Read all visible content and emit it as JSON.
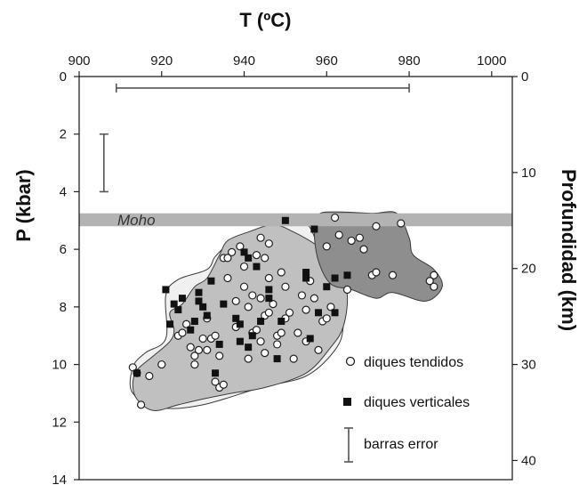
{
  "chart_data": {
    "type": "scatter",
    "title": "",
    "x_title": "T (ºC)",
    "y_title": "P (kbar)",
    "y2_title": "Profundidad (km)",
    "xlim": [
      900,
      1005
    ],
    "x_ticks": [
      900,
      920,
      940,
      960,
      980,
      1000
    ],
    "ylim": [
      0,
      14
    ],
    "y_ticks": [
      0,
      2,
      4,
      6,
      8,
      10,
      12,
      14
    ],
    "y2_ticks": [
      0,
      10,
      20,
      30,
      40
    ],
    "grid": false,
    "legend_position": "bottom-right",
    "moho": {
      "label": "Moho",
      "p_min": 4.75,
      "p_max": 5.2,
      "color": "#b3b3b3"
    },
    "error_bars": {
      "temperature": {
        "min": 909,
        "max": 980,
        "p": 0.4
      },
      "pressure": {
        "t": 906,
        "p_min": 2,
        "p_max": 4
      }
    },
    "fields": [
      {
        "name": "outer",
        "fill": "#f0f0f0",
        "points": [
          [
            913,
            10.1
          ],
          [
            916,
            9.6
          ],
          [
            921,
            9.1
          ],
          [
            921,
            7.6
          ],
          [
            924,
            7.05
          ],
          [
            931,
            6.7
          ],
          [
            933,
            6.25
          ],
          [
            937,
            5.75
          ],
          [
            944,
            5.3
          ],
          [
            949,
            4.9
          ],
          [
            955,
            5.1
          ],
          [
            958,
            5.9
          ],
          [
            963,
            7.6
          ],
          [
            964,
            8.7
          ],
          [
            962,
            9.5
          ],
          [
            955,
            10.4
          ],
          [
            944,
            10.8
          ],
          [
            930,
            11.4
          ],
          [
            920,
            11.5
          ],
          [
            913,
            11.0
          ]
        ]
      },
      {
        "name": "middle",
        "fill": "#c0c0c0",
        "points": [
          [
            914,
            10.2
          ],
          [
            918,
            9.7
          ],
          [
            922,
            9.2
          ],
          [
            923,
            8.8
          ],
          [
            922,
            8.2
          ],
          [
            925,
            7.9
          ],
          [
            928,
            7.3
          ],
          [
            931,
            7.0
          ],
          [
            934,
            6.2
          ],
          [
            936,
            5.7
          ],
          [
            941,
            5.4
          ],
          [
            947,
            5.15
          ],
          [
            952,
            5.4
          ],
          [
            958,
            5.9
          ],
          [
            963,
            6.5
          ],
          [
            965,
            7.6
          ],
          [
            964,
            8.7
          ],
          [
            961,
            9.4
          ],
          [
            955,
            10.3
          ],
          [
            945,
            10.8
          ],
          [
            937,
            11.0
          ],
          [
            930,
            11.2
          ],
          [
            924,
            11.4
          ],
          [
            918,
            11.6
          ],
          [
            914,
            11.2
          ],
          [
            913,
            10.7
          ]
        ]
      },
      {
        "name": "high-temperature",
        "fill": "#8e8e8e",
        "points": [
          [
            958,
            4.8
          ],
          [
            962,
            4.7
          ],
          [
            971,
            4.75
          ],
          [
            977,
            4.75
          ],
          [
            980,
            5.6
          ],
          [
            981,
            6.2
          ],
          [
            986,
            6.7
          ],
          [
            988,
            7.3
          ],
          [
            984,
            7.8
          ],
          [
            976,
            7.5
          ],
          [
            972,
            7.7
          ],
          [
            966,
            7.4
          ],
          [
            961,
            7.2
          ],
          [
            958,
            6.4
          ],
          [
            957,
            5.4
          ]
        ]
      }
    ],
    "series": [
      {
        "name": "diques tendidos",
        "marker": "open-circle",
        "points": [
          [
            913,
            10.1
          ],
          [
            914,
            10.3
          ],
          [
            915,
            11.4
          ],
          [
            917,
            10.4
          ],
          [
            920,
            10.0
          ],
          [
            924,
            9.0
          ],
          [
            925,
            8.9
          ],
          [
            926,
            8.6
          ],
          [
            927,
            9.4
          ],
          [
            928,
            9.7
          ],
          [
            928,
            10.0
          ],
          [
            929,
            9.5
          ],
          [
            930,
            9.1
          ],
          [
            931,
            8.4
          ],
          [
            931,
            9.5
          ],
          [
            932,
            9.1
          ],
          [
            933,
            9.0
          ],
          [
            933,
            10.6
          ],
          [
            934,
            9.7
          ],
          [
            934,
            10.8
          ],
          [
            935,
            10.7
          ],
          [
            935,
            6.3
          ],
          [
            936,
            6.3
          ],
          [
            936,
            7.0
          ],
          [
            937,
            6.1
          ],
          [
            938,
            7.8
          ],
          [
            938,
            8.7
          ],
          [
            939,
            5.9
          ],
          [
            940,
            6.6
          ],
          [
            940,
            7.3
          ],
          [
            941,
            8.0
          ],
          [
            941,
            9.8
          ],
          [
            942,
            7.6
          ],
          [
            942,
            8.9
          ],
          [
            943,
            6.2
          ],
          [
            943,
            8.8
          ],
          [
            944,
            5.6
          ],
          [
            944,
            7.7
          ],
          [
            944,
            9.2
          ],
          [
            945,
            6.3
          ],
          [
            945,
            8.3
          ],
          [
            945,
            9.6
          ],
          [
            946,
            5.8
          ],
          [
            946,
            7.0
          ],
          [
            946,
            8.2
          ],
          [
            947,
            7.9
          ],
          [
            948,
            9.0
          ],
          [
            948,
            9.3
          ],
          [
            949,
            6.8
          ],
          [
            949,
            8.9
          ],
          [
            950,
            7.3
          ],
          [
            950,
            8.4
          ],
          [
            951,
            8.2
          ],
          [
            952,
            9.8
          ],
          [
            953,
            8.9
          ],
          [
            954,
            7.6
          ],
          [
            955,
            8.1
          ],
          [
            955,
            9.2
          ],
          [
            956,
            7.1
          ],
          [
            957,
            7.7
          ],
          [
            958,
            9.5
          ],
          [
            959,
            8.5
          ],
          [
            960,
            5.9
          ],
          [
            960,
            8.4
          ],
          [
            961,
            8.0
          ],
          [
            962,
            4.9
          ],
          [
            963,
            5.5
          ],
          [
            965,
            7.4
          ],
          [
            966,
            5.7
          ],
          [
            968,
            5.6
          ],
          [
            969,
            6.0
          ],
          [
            971,
            6.9
          ],
          [
            972,
            6.8
          ],
          [
            972,
            5.2
          ],
          [
            976,
            6.9
          ],
          [
            978,
            5.1
          ],
          [
            985,
            7.1
          ],
          [
            986,
            7.3
          ],
          [
            986,
            6.9
          ]
        ]
      },
      {
        "name": "diques verticales",
        "marker": "filled-square",
        "points": [
          [
            914,
            10.3
          ],
          [
            921,
            7.4
          ],
          [
            922,
            8.6
          ],
          [
            923,
            7.9
          ],
          [
            924,
            8.1
          ],
          [
            925,
            7.7
          ],
          [
            927,
            8.8
          ],
          [
            928,
            8.5
          ],
          [
            929,
            7.8
          ],
          [
            929,
            7.5
          ],
          [
            930,
            8.0
          ],
          [
            931,
            8.3
          ],
          [
            932,
            7.1
          ],
          [
            933,
            10.3
          ],
          [
            934,
            9.3
          ],
          [
            935,
            7.9
          ],
          [
            938,
            8.4
          ],
          [
            939,
            8.6
          ],
          [
            939,
            9.2
          ],
          [
            940,
            6.1
          ],
          [
            941,
            6.3
          ],
          [
            941,
            9.4
          ],
          [
            942,
            9.0
          ],
          [
            943,
            6.6
          ],
          [
            944,
            8.5
          ],
          [
            946,
            7.7
          ],
          [
            946,
            7.4
          ],
          [
            948,
            9.8
          ],
          [
            949,
            8.5
          ],
          [
            950,
            5.0
          ],
          [
            955,
            6.8
          ],
          [
            955,
            7.0
          ],
          [
            956,
            9.1
          ],
          [
            957,
            5.3
          ],
          [
            958,
            8.2
          ],
          [
            960,
            7.3
          ],
          [
            962,
            7.0
          ],
          [
            962,
            8.2
          ],
          [
            965,
            6.9
          ]
        ]
      }
    ],
    "legend": [
      {
        "marker": "open-circle",
        "label": "diques tendidos"
      },
      {
        "marker": "filled-square",
        "label": "diques verticales"
      },
      {
        "marker": "error-bar",
        "label": "barras error"
      }
    ]
  }
}
